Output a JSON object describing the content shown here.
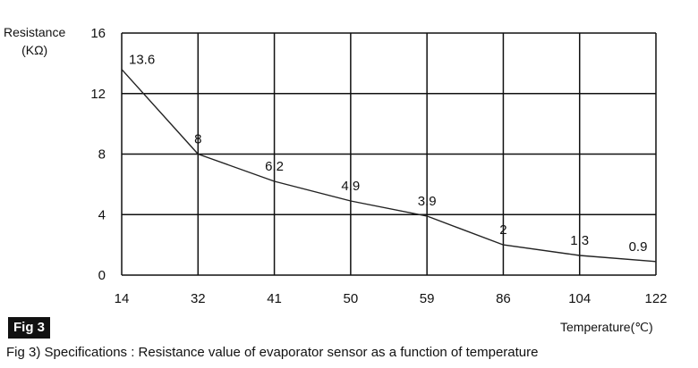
{
  "chart_data": {
    "type": "line",
    "ylabel_line1": "Resistance",
    "ylabel_line2": "(KΩ)",
    "xlabel": "Temperature(℃)",
    "categories": [
      "14",
      "32",
      "41",
      "50",
      "59",
      "86",
      "104",
      "122"
    ],
    "values": [
      13.6,
      8,
      6.2,
      4.9,
      3.9,
      2,
      1.3,
      0.9
    ],
    "data_labels": [
      "13.6",
      "8",
      "6.2",
      "4.9",
      "3.9",
      "2",
      "1.3",
      "0.9"
    ],
    "yticks": [
      0,
      4,
      8,
      12,
      16
    ],
    "ylim": [
      0,
      16
    ],
    "grid": true,
    "series_color": "#222222"
  },
  "figure": {
    "tag": "Fig 3",
    "caption": "Fig 3) Specifications : Resistance value of evaporator sensor as a function of temperature"
  }
}
